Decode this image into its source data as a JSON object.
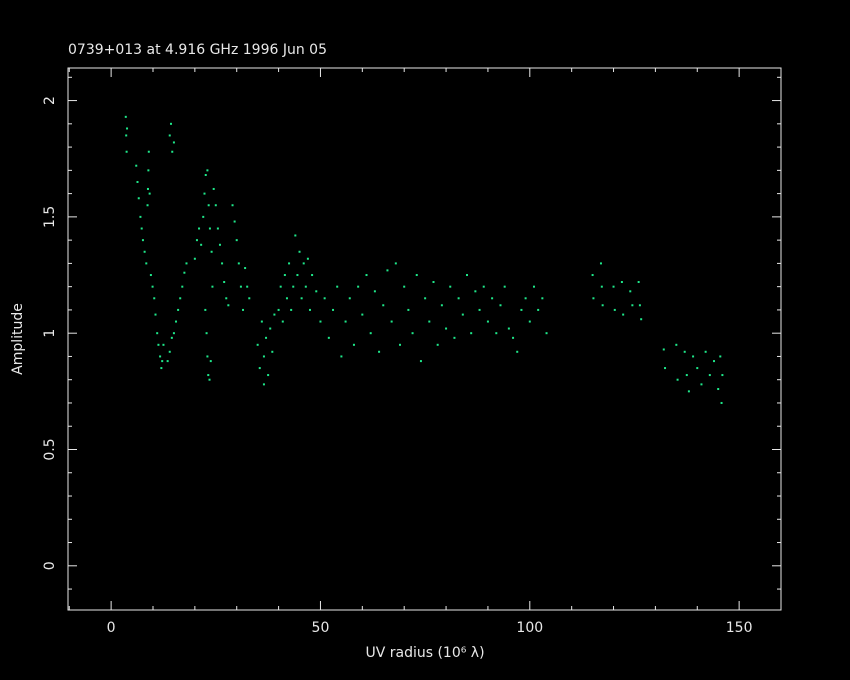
{
  "chart_data": {
    "type": "scatter",
    "title": "0739+013 at 4.916 GHz 1996 Jun 05",
    "xlabel": "UV radius  (10⁶ λ)",
    "ylabel": "Amplitude",
    "color": "#1ee88a",
    "xlim": [
      -10.3,
      160
    ],
    "ylim": [
      -0.19,
      2.14
    ],
    "xticks": [
      0,
      50,
      100,
      150
    ],
    "yticks": [
      0,
      0.5,
      1,
      1.5,
      2
    ],
    "xminorticks": [
      -10,
      10,
      20,
      30,
      40,
      60,
      70,
      80,
      90,
      110,
      120,
      130,
      140,
      160
    ],
    "yminorticks": [
      -0.1,
      0.1,
      0.2,
      0.3,
      0.4,
      0.6,
      0.7,
      0.8,
      0.9,
      1.1,
      1.2,
      1.3,
      1.4,
      1.6,
      1.7,
      1.8,
      1.9,
      2.1
    ],
    "x": [
      3.5,
      3.6,
      3.7,
      3.8,
      6.0,
      6.3,
      6.6,
      7.0,
      7.3,
      7.6,
      8.0,
      8.4,
      8.7,
      8.8,
      8.9,
      9.0,
      9.2,
      9.5,
      9.9,
      10.3,
      10.6,
      11.0,
      11.3,
      11.7,
      12.0,
      12.2,
      12.5,
      14.0,
      14.3,
      14.6,
      15.0,
      13.5,
      14.0,
      14.5,
      15.0,
      15.5,
      16.0,
      16.5,
      17.0,
      17.5,
      18.0,
      20.0,
      20.5,
      21.0,
      21.5,
      22.0,
      22.3,
      22.6,
      23.0,
      23.3,
      23.6,
      24.0,
      22.5,
      22.8,
      23.0,
      23.2,
      23.5,
      23.8,
      24.2,
      24.5,
      25.0,
      25.5,
      26.0,
      26.5,
      27.0,
      27.5,
      28.0,
      29.0,
      29.5,
      30.0,
      30.5,
      31.0,
      31.5,
      32.0,
      32.5,
      33.0,
      35.0,
      35.5,
      36.0,
      36.5,
      37.0,
      37.5,
      38.0,
      38.5,
      39.0,
      40.0,
      40.5,
      41.0,
      41.5,
      42.0,
      42.5,
      43.0,
      43.5,
      44.0,
      44.5,
      45.0,
      45.5,
      46.0,
      46.5,
      47.0,
      47.5,
      48.0,
      49.0,
      50.0,
      51.0,
      52.0,
      53.0,
      54.0,
      55.0,
      56.0,
      57.0,
      58.0,
      59.0,
      60.0,
      61.0,
      62.0,
      63.0,
      64.0,
      65.0,
      66.0,
      67.0,
      68.0,
      69.0,
      70.0,
      71.0,
      72.0,
      73.0,
      74.0,
      75.0,
      76.0,
      77.0,
      78.0,
      79.0,
      80.0,
      81.0,
      82.0,
      83.0,
      84.0,
      85.0,
      86.0,
      87.0,
      88.0,
      89.0,
      90.0,
      91.0,
      92.0,
      93.0,
      94.0,
      95.0,
      96.0,
      97.0,
      98.0,
      99.0,
      100.0,
      101.0,
      102.0,
      103.0,
      104.0,
      115.0,
      115.2,
      117.0,
      117.2,
      117.4,
      120.0,
      120.3,
      122.0,
      122.3,
      124.0,
      124.5,
      126.0,
      126.3,
      126.6,
      132.0,
      132.3,
      135.0,
      135.3,
      137.0,
      137.5,
      138.0,
      139.0,
      140.0,
      141.0,
      142.0,
      143.0,
      144.0,
      145.0,
      145.5,
      145.8,
      146.0,
      36.5
    ],
    "values": [
      1.93,
      1.85,
      1.78,
      1.88,
      1.72,
      1.65,
      1.58,
      1.5,
      1.45,
      1.4,
      1.35,
      1.3,
      1.55,
      1.62,
      1.7,
      1.78,
      1.6,
      1.25,
      1.2,
      1.15,
      1.08,
      1.0,
      0.95,
      0.9,
      0.85,
      0.88,
      0.95,
      1.85,
      1.9,
      1.78,
      1.82,
      0.88,
      0.92,
      0.98,
      1.0,
      1.05,
      1.1,
      1.15,
      1.2,
      1.26,
      1.3,
      1.32,
      1.4,
      1.45,
      1.38,
      1.5,
      1.6,
      1.68,
      1.7,
      1.55,
      1.45,
      1.35,
      1.1,
      1.0,
      0.9,
      0.82,
      0.8,
      0.88,
      1.2,
      1.62,
      1.55,
      1.45,
      1.38,
      1.3,
      1.22,
      1.15,
      1.12,
      1.55,
      1.48,
      1.4,
      1.3,
      1.2,
      1.1,
      1.28,
      1.2,
      1.15,
      0.95,
      0.85,
      1.05,
      0.9,
      0.98,
      0.82,
      1.02,
      0.92,
      1.08,
      1.1,
      1.2,
      1.05,
      1.25,
      1.15,
      1.3,
      1.1,
      1.2,
      1.42,
      1.25,
      1.35,
      1.15,
      1.3,
      1.2,
      1.32,
      1.1,
      1.25,
      1.18,
      1.05,
      1.15,
      0.98,
      1.1,
      1.2,
      0.9,
      1.05,
      1.15,
      0.95,
      1.2,
      1.08,
      1.25,
      1.0,
      1.18,
      0.92,
      1.12,
      1.27,
      1.05,
      1.3,
      0.95,
      1.2,
      1.1,
      1.0,
      1.25,
      0.88,
      1.15,
      1.05,
      1.22,
      0.95,
      1.12,
      1.02,
      1.2,
      0.98,
      1.15,
      1.08,
      1.25,
      1.0,
      1.18,
      1.1,
      1.2,
      1.05,
      1.15,
      1.0,
      1.12,
      1.2,
      1.02,
      0.98,
      0.92,
      1.1,
      1.15,
      1.05,
      1.2,
      1.1,
      1.15,
      1.0,
      1.25,
      1.15,
      1.3,
      1.2,
      1.12,
      1.2,
      1.1,
      1.22,
      1.08,
      1.18,
      1.12,
      1.22,
      1.12,
      1.06,
      0.93,
      0.85,
      0.95,
      0.8,
      0.92,
      0.82,
      0.75,
      0.9,
      0.85,
      0.78,
      0.92,
      0.82,
      0.88,
      0.76,
      0.9,
      0.7,
      0.82,
      0.78
    ]
  }
}
